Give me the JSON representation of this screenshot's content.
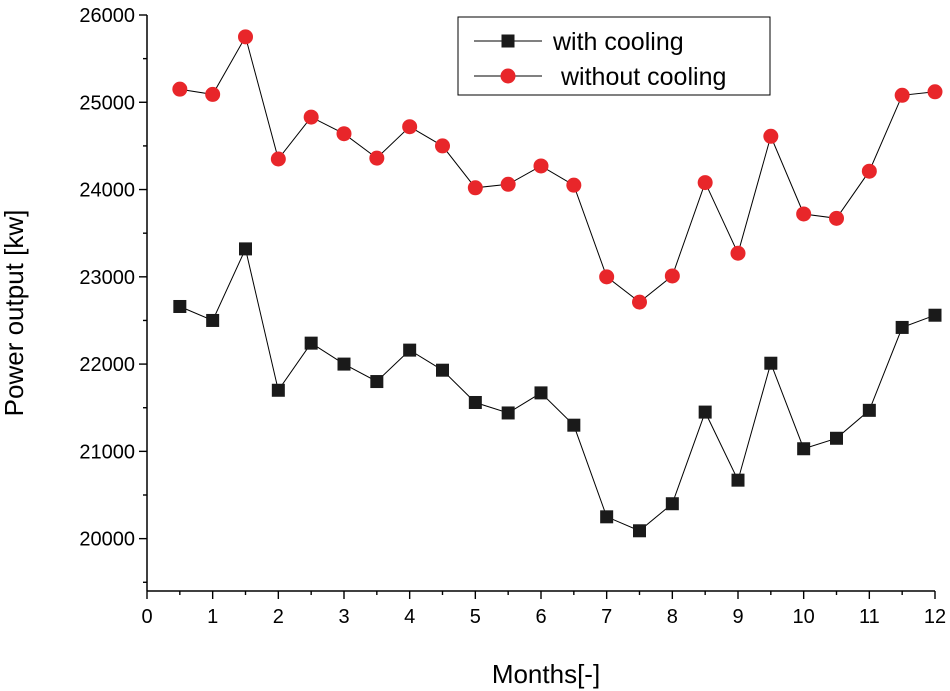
{
  "chart_data": {
    "type": "line",
    "title": "",
    "xlabel": "Months[-]",
    "ylabel": "Power output [kw]",
    "xlim": [
      0,
      12
    ],
    "ylim": [
      19400,
      26000
    ],
    "x_ticks": [
      0,
      1,
      2,
      3,
      4,
      5,
      6,
      7,
      8,
      9,
      10,
      11,
      12
    ],
    "y_ticks": [
      20000,
      21000,
      22000,
      23000,
      24000,
      25000,
      26000
    ],
    "grid": false,
    "legend_position": "top-center",
    "x": [
      0.5,
      1,
      1.5,
      2,
      2.5,
      3,
      3.5,
      4,
      4.5,
      5,
      5.5,
      6,
      6.5,
      7,
      7.5,
      8,
      8.5,
      9,
      9.5,
      10,
      10.5,
      11,
      11.5,
      12
    ],
    "series": [
      {
        "name": "with cooling",
        "marker": "square",
        "color": "#1a1a1a",
        "values": [
          22660,
          22500,
          23320,
          21700,
          22240,
          22000,
          21800,
          22160,
          21930,
          21560,
          21440,
          21670,
          21300,
          20250,
          20090,
          20400,
          21450,
          20670,
          22010,
          21030,
          21150,
          21470,
          22420,
          22560
        ]
      },
      {
        "name": "without cooling",
        "marker": "circle",
        "color": "#e8262a",
        "values": [
          25150,
          25090,
          25750,
          24350,
          24830,
          24640,
          24360,
          24720,
          24500,
          24020,
          24060,
          24270,
          24050,
          23000,
          22710,
          23010,
          24080,
          23270,
          24610,
          23720,
          23670,
          24210,
          25080,
          25120
        ]
      }
    ]
  }
}
